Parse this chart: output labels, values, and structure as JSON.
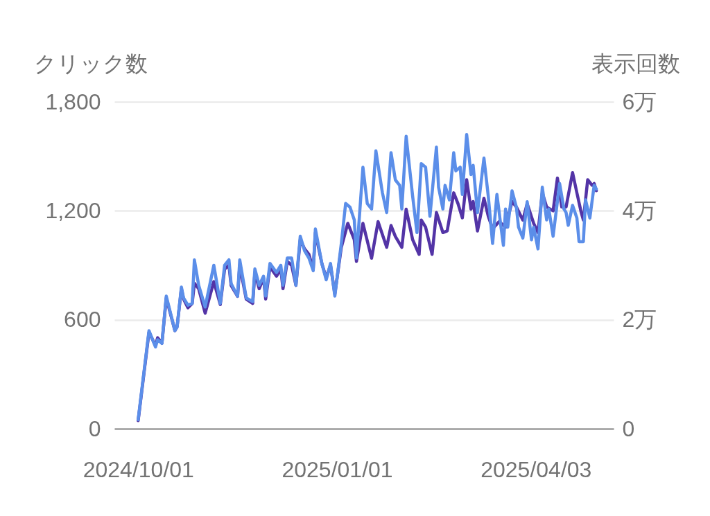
{
  "chart_data": {
    "type": "line",
    "ylabel": "クリック数",
    "y2label": "表示回数",
    "xlim": [
      "2024-09-20",
      "2025-05-09"
    ],
    "xticks": [
      {
        "value": "2024-10-01",
        "label": "2024/10/01"
      },
      {
        "value": "2025-01-01",
        "label": "2025/01/01"
      },
      {
        "value": "2025-04-03",
        "label": "2025/04/03"
      }
    ],
    "ylim": [
      0,
      1800
    ],
    "yticks": [
      0,
      600,
      {
        "value": 1200,
        "label": "1,200"
      },
      {
        "value": 1800,
        "label": "1,800"
      }
    ],
    "y2lim": [
      0,
      6
    ],
    "y2ticks": [
      0,
      {
        "value": 2,
        "label": "2万"
      },
      {
        "value": 4,
        "label": "4万"
      },
      {
        "value": 6,
        "label": "6万"
      }
    ],
    "grid": "y",
    "marker": "none",
    "line_style": "solid",
    "series": [
      {
        "color": "#5334a6",
        "axis": "y2",
        "x": [
          "2024-10-01",
          "2024-10-06",
          "2024-10-09",
          "2024-10-10",
          "2024-10-12",
          "2024-10-14",
          "2024-10-18",
          "2024-10-19",
          "2024-10-21",
          "2024-10-22",
          "2024-10-24",
          "2024-10-26",
          "2024-10-27",
          "2024-10-29",
          "2024-11-01",
          "2024-11-05",
          "2024-11-08",
          "2024-11-10",
          "2024-11-12",
          "2024-11-13",
          "2024-11-16",
          "2024-11-17",
          "2024-11-20",
          "2024-11-23",
          "2024-11-24",
          "2024-11-26",
          "2024-11-28",
          "2024-11-29",
          "2024-12-01",
          "2024-12-04",
          "2024-12-06",
          "2024-12-07",
          "2024-12-09",
          "2024-12-11",
          "2024-12-13",
          "2024-12-15",
          "2024-12-17",
          "2024-12-19",
          "2024-12-21",
          "2024-12-22",
          "2024-12-25",
          "2024-12-27",
          "2024-12-29",
          "2024-12-31",
          "2025-01-03",
          "2025-01-06",
          "2025-01-09",
          "2025-01-10",
          "2025-01-13",
          "2025-01-17",
          "2025-01-20",
          "2025-01-24",
          "2025-01-26",
          "2025-01-28",
          "2025-01-31",
          "2025-02-02",
          "2025-02-05",
          "2025-02-08",
          "2025-02-09",
          "2025-02-11",
          "2025-02-14",
          "2025-02-16",
          "2025-02-19",
          "2025-02-21",
          "2025-02-24",
          "2025-02-26",
          "2025-02-28",
          "2025-03-02",
          "2025-03-04",
          "2025-03-05",
          "2025-03-07",
          "2025-03-10",
          "2025-03-12",
          "2025-03-14",
          "2025-03-17",
          "2025-03-20",
          "2025-03-23",
          "2025-03-25",
          "2025-03-28",
          "2025-03-30",
          "2025-04-02",
          "2025-04-04",
          "2025-04-06",
          "2025-04-08",
          "2025-04-11",
          "2025-04-13",
          "2025-04-15",
          "2025-04-17",
          "2025-04-20",
          "2025-04-22",
          "2025-04-24",
          "2025-04-25",
          "2025-04-27",
          "2025-04-29",
          "2025-04-30",
          "2025-05-01"
        ],
        "values": [
          0.15,
          1.77,
          1.53,
          1.67,
          1.57,
          2.4,
          1.8,
          1.87,
          2.57,
          2.38,
          2.22,
          2.3,
          2.67,
          2.57,
          2.12,
          2.7,
          2.28,
          2.93,
          3.0,
          2.63,
          2.43,
          3.0,
          2.38,
          2.3,
          2.87,
          2.57,
          2.77,
          2.38,
          2.97,
          2.8,
          2.93,
          2.57,
          3.07,
          3.0,
          2.63,
          3.47,
          3.3,
          3.2,
          2.93,
          3.6,
          3.03,
          2.77,
          3.0,
          2.47,
          3.33,
          3.77,
          3.47,
          3.07,
          3.77,
          3.13,
          3.8,
          3.33,
          3.73,
          3.53,
          3.33,
          4.03,
          3.47,
          3.2,
          3.83,
          3.7,
          3.2,
          3.97,
          3.6,
          3.63,
          4.33,
          4.13,
          3.87,
          4.57,
          4.03,
          4.17,
          3.63,
          4.23,
          3.9,
          3.67,
          3.8,
          3.7,
          4.17,
          4.07,
          3.83,
          4.13,
          3.77,
          3.6,
          4.33,
          4.07,
          4.0,
          4.6,
          4.07,
          4.07,
          4.7,
          4.33,
          3.97,
          3.83,
          4.57,
          4.47,
          4.5,
          4.37
        ]
      },
      {
        "color": "#5b8ee9",
        "x": [
          "2024-10-01",
          "2024-10-06",
          "2024-10-09",
          "2024-10-10",
          "2024-10-12",
          "2024-10-14",
          "2024-10-18",
          "2024-10-19",
          "2024-10-21",
          "2024-10-22",
          "2024-10-24",
          "2024-10-26",
          "2024-10-27",
          "2024-10-29",
          "2024-11-01",
          "2024-11-05",
          "2024-11-08",
          "2024-11-10",
          "2024-11-12",
          "2024-11-13",
          "2024-11-16",
          "2024-11-17",
          "2024-11-20",
          "2024-11-23",
          "2024-11-24",
          "2024-11-26",
          "2024-11-28",
          "2024-11-29",
          "2024-12-01",
          "2024-12-04",
          "2024-12-06",
          "2024-12-07",
          "2024-12-09",
          "2024-12-11",
          "2024-12-13",
          "2024-12-15",
          "2024-12-17",
          "2024-12-19",
          "2024-12-21",
          "2024-12-22",
          "2024-12-25",
          "2024-12-27",
          "2024-12-29",
          "2024-12-31",
          "2025-01-03",
          "2025-01-05",
          "2025-01-07",
          "2025-01-09",
          "2025-01-10",
          "2025-01-13",
          "2025-01-15",
          "2025-01-17",
          "2025-01-19",
          "2025-01-22",
          "2025-01-24",
          "2025-01-26",
          "2025-01-28",
          "2025-01-30",
          "2025-01-31",
          "2025-02-02",
          "2025-02-05",
          "2025-02-07",
          "2025-02-09",
          "2025-02-11",
          "2025-02-13",
          "2025-02-16",
          "2025-02-17",
          "2025-02-19",
          "2025-02-20",
          "2025-02-22",
          "2025-02-24",
          "2025-02-25",
          "2025-02-27",
          "2025-02-28",
          "2025-03-02",
          "2025-03-04",
          "2025-03-05",
          "2025-03-07",
          "2025-03-10",
          "2025-03-12",
          "2025-03-14",
          "2025-03-16",
          "2025-03-18",
          "2025-03-19",
          "2025-03-20",
          "2025-03-21",
          "2025-03-23",
          "2025-03-25",
          "2025-03-26",
          "2025-03-28",
          "2025-03-30",
          "2025-04-01",
          "2025-04-02",
          "2025-04-04",
          "2025-04-06",
          "2025-04-08",
          "2025-04-09",
          "2025-04-11",
          "2025-04-14",
          "2025-04-16",
          "2025-04-17",
          "2025-04-18",
          "2025-04-20",
          "2025-04-22",
          "2025-04-23",
          "2025-04-25",
          "2025-04-26",
          "2025-04-28",
          "2025-04-30",
          "2025-05-01"
        ],
        "values": [
          50,
          540,
          450,
          490,
          470,
          730,
          540,
          560,
          780,
          720,
          680,
          690,
          930,
          790,
          670,
          900,
          690,
          900,
          930,
          800,
          730,
          930,
          720,
          700,
          880,
          790,
          840,
          730,
          910,
          860,
          900,
          790,
          940,
          940,
          790,
          1060,
          980,
          940,
          870,
          1100,
          910,
          820,
          910,
          730,
          1020,
          1240,
          1220,
          1150,
          940,
          1440,
          1240,
          1210,
          1530,
          1300,
          1190,
          1520,
          1370,
          1340,
          1210,
          1610,
          1280,
          1080,
          1460,
          1440,
          1170,
          1550,
          1330,
          1210,
          1340,
          1260,
          1520,
          1420,
          1440,
          1290,
          1620,
          1400,
          1450,
          1190,
          1490,
          1280,
          1020,
          1290,
          1100,
          1010,
          1210,
          1110,
          1310,
          1220,
          1110,
          1050,
          1250,
          1040,
          1110,
          990,
          1330,
          1150,
          1210,
          1060,
          1350,
          1210,
          1190,
          1120,
          1230,
          1160,
          1030,
          1030,
          1260,
          1160,
          1340,
          1320
        ]
      }
    ]
  }
}
